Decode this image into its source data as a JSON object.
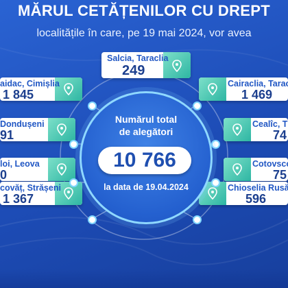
{
  "header": {
    "title": "MĂRUL CETĂȚENILOR CU DREPT",
    "subtitle": "localitățile în care, pe 19 mai 2024, vor avea"
  },
  "center": {
    "total_label_line1": "Numărul total",
    "total_label_line2": "de alegători",
    "total_value": "10 766",
    "date_label": "la data de 19.04.2024"
  },
  "localities": {
    "top": {
      "name": "Salcia, Taraclia",
      "value": "249"
    },
    "left": [
      {
        "name": "aidac, Cimișlia",
        "value": "1 845"
      },
      {
        "name": "Dondușeni",
        "value": "91"
      },
      {
        "name": "loi, Leova",
        "value": "0"
      },
      {
        "name": "covăț, Strășeni",
        "value": "1 367"
      }
    ],
    "right": [
      {
        "name": "Cairaclia, Taraclia",
        "value": "1 469"
      },
      {
        "name": "Cealîc, T",
        "value": "74"
      },
      {
        "name": "Cotovsco",
        "value": "75"
      },
      {
        "name": "Chioselia Rusă, U",
        "value": "596"
      }
    ]
  },
  "colors": {
    "background": "#1f4fb8",
    "accent": "#2eb6a3",
    "text_dark": "#1c3f8e",
    "text_accent": "#2157c4"
  },
  "icons": {
    "card_icon": "location-pin-icon"
  }
}
